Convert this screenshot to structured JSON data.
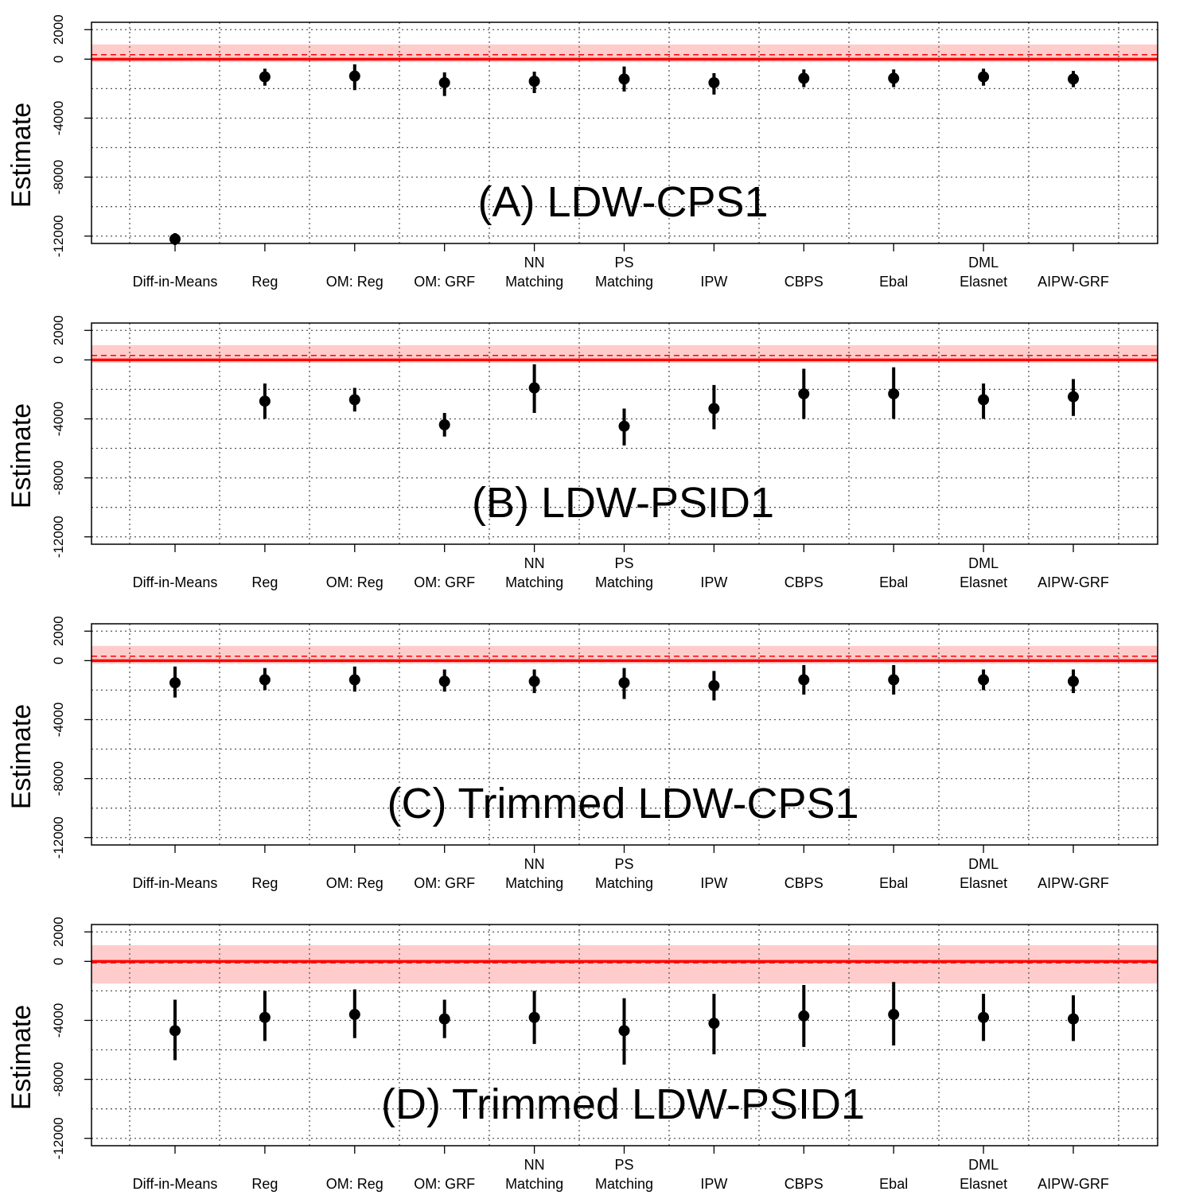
{
  "chart_data": [
    {
      "type": "scatter",
      "title": "(A) LDW-CPS1",
      "ylabel": "Estimate",
      "ylim": [
        -12500,
        2500
      ],
      "yticks": [
        2000,
        0,
        -4000,
        -8000,
        -12000
      ],
      "categories": [
        "Diff-in-Means",
        "Reg",
        "OM: Reg",
        "OM: GRF",
        "NN\nMatching",
        "PS\nMatching",
        "IPW",
        "CBPS",
        "Ebal",
        "DML\nElasnet",
        "AIPW-GRF"
      ],
      "benchmark": {
        "estimate": 0,
        "ci": [
          -200,
          1000
        ],
        "dashed": 300,
        "color": "#ff0000",
        "band_color": "#ffcccc"
      },
      "series": [
        {
          "estimates": [
            -12200,
            -1200,
            -1150,
            -1600,
            -1500,
            -1350,
            -1600,
            -1300,
            -1300,
            -1200,
            -1350
          ],
          "ci_low": [
            -12600,
            -1800,
            -2100,
            -2500,
            -2300,
            -2200,
            -2400,
            -1900,
            -1900,
            -1800,
            -1900
          ],
          "ci_high": [
            -11800,
            -650,
            -350,
            -900,
            -850,
            -500,
            -950,
            -700,
            -700,
            -650,
            -800
          ]
        }
      ],
      "grid": true
    },
    {
      "type": "scatter",
      "title": "(B) LDW-PSID1",
      "ylabel": "Estimate",
      "ylim": [
        -12500,
        2500
      ],
      "yticks": [
        2000,
        0,
        -4000,
        -8000,
        -12000
      ],
      "categories": [
        "Diff-in-Means",
        "Reg",
        "OM: Reg",
        "OM: GRF",
        "NN\nMatching",
        "PS\nMatching",
        "IPW",
        "CBPS",
        "Ebal",
        "DML\nElasnet",
        "AIPW-GRF"
      ],
      "benchmark": {
        "estimate": 0,
        "ci": [
          -200,
          1000
        ],
        "dashed": 300,
        "color": "#ff0000",
        "band_color": "#ffcccc"
      },
      "series": [
        {
          "estimates": [
            null,
            -2800,
            -2700,
            -4400,
            -1900,
            -4500,
            -3300,
            -2300,
            -2300,
            -2700,
            -2500
          ],
          "ci_low": [
            null,
            -4000,
            -3500,
            -5200,
            -3600,
            -5800,
            -4700,
            -4000,
            -4000,
            -4000,
            -3800
          ],
          "ci_high": [
            null,
            -1600,
            -1900,
            -3600,
            -300,
            -3300,
            -1700,
            -600,
            -500,
            -1600,
            -1300
          ]
        }
      ],
      "grid": true
    },
    {
      "type": "scatter",
      "title": "(C) Trimmed LDW-CPS1",
      "ylabel": "Estimate",
      "ylim": [
        -12500,
        2500
      ],
      "yticks": [
        2000,
        0,
        -4000,
        -8000,
        -12000
      ],
      "categories": [
        "Diff-in-Means",
        "Reg",
        "OM: Reg",
        "OM: GRF",
        "NN\nMatching",
        "PS\nMatching",
        "IPW",
        "CBPS",
        "Ebal",
        "DML\nElasnet",
        "AIPW-GRF"
      ],
      "benchmark": {
        "estimate": 0,
        "ci": [
          -200,
          1000
        ],
        "dashed": 300,
        "color": "#ff0000",
        "band_color": "#ffcccc"
      },
      "series": [
        {
          "estimates": [
            -1500,
            -1300,
            -1300,
            -1400,
            -1400,
            -1500,
            -1700,
            -1300,
            -1300,
            -1300,
            -1400
          ],
          "ci_low": [
            -2500,
            -2000,
            -2100,
            -2100,
            -2200,
            -2600,
            -2700,
            -2300,
            -2300,
            -2000,
            -2200
          ],
          "ci_high": [
            -400,
            -500,
            -400,
            -600,
            -600,
            -500,
            -700,
            -300,
            -300,
            -600,
            -600
          ]
        }
      ],
      "grid": true
    },
    {
      "type": "scatter",
      "title": "(D) Trimmed LDW-PSID1",
      "ylabel": "Estimate",
      "ylim": [
        -12500,
        2500
      ],
      "yticks": [
        2000,
        0,
        -4000,
        -8000,
        -12000
      ],
      "categories": [
        "Diff-in-Means",
        "Reg",
        "OM: Reg",
        "OM: GRF",
        "NN\nMatching",
        "PS\nMatching",
        "IPW",
        "CBPS",
        "Ebal",
        "DML\nElasnet",
        "AIPW-GRF"
      ],
      "benchmark": {
        "estimate": 0,
        "ci": [
          -1500,
          1100
        ],
        "dashed": -100,
        "color": "#ff0000",
        "band_color": "#ffcccc"
      },
      "series": [
        {
          "estimates": [
            -4700,
            -3800,
            -3600,
            -3900,
            -3800,
            -4700,
            -4200,
            -3700,
            -3600,
            -3800,
            -3900
          ],
          "ci_low": [
            -6700,
            -5400,
            -5200,
            -5200,
            -5600,
            -7000,
            -6300,
            -5800,
            -5700,
            -5400,
            -5400
          ],
          "ci_high": [
            -2600,
            -2000,
            -1900,
            -2600,
            -2000,
            -2500,
            -2200,
            -1600,
            -1400,
            -2200,
            -2300
          ]
        }
      ],
      "grid": true
    }
  ]
}
